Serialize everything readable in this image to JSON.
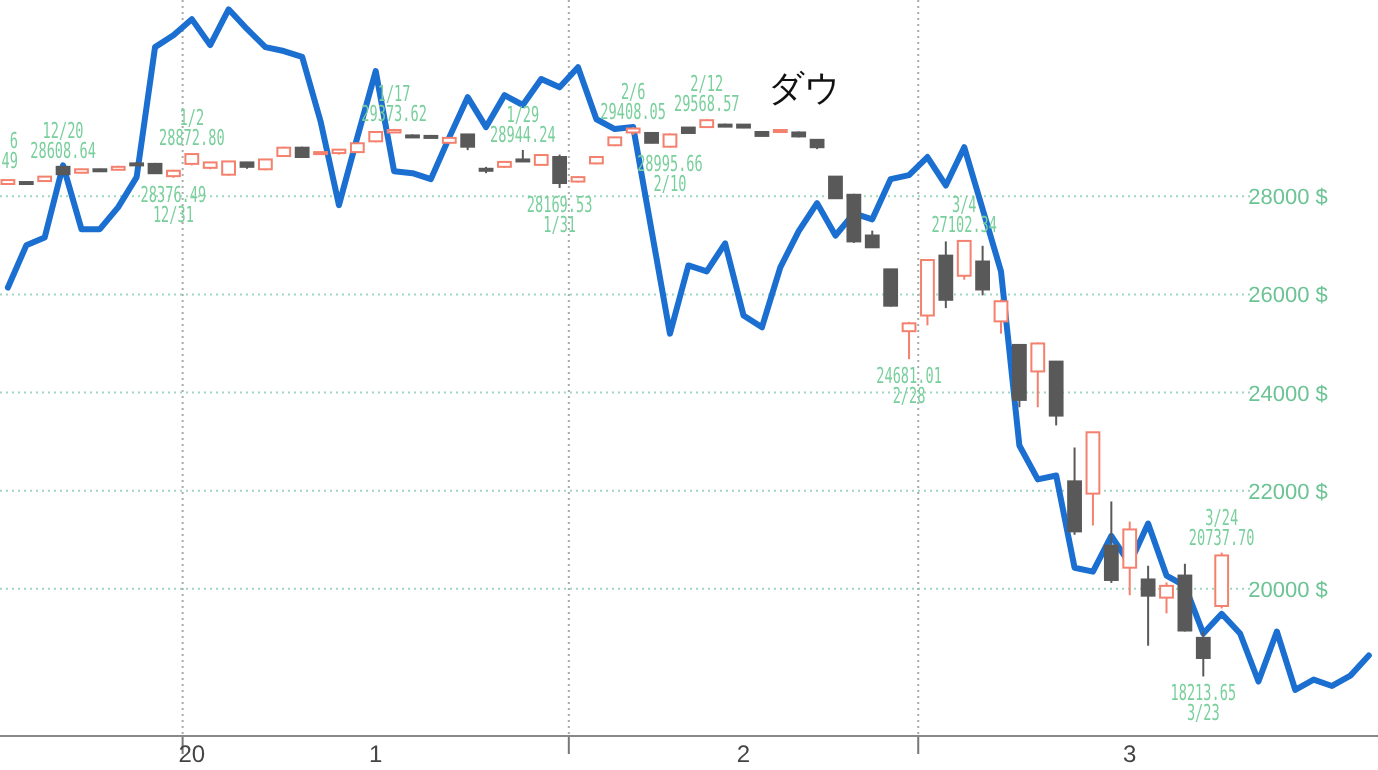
{
  "chart_data": {
    "type": "candlestick",
    "title": "ダウ",
    "categories": [
      null,
      null,
      null,
      null,
      null,
      null,
      null,
      null,
      null,
      null,
      "20",
      null,
      null,
      null,
      null,
      null,
      null,
      null,
      null,
      null,
      "1",
      null,
      null,
      null,
      null,
      null,
      null,
      null,
      null,
      null,
      null,
      null,
      null,
      null,
      null,
      null,
      null,
      null,
      null,
      null,
      "2",
      null,
      null,
      null,
      null,
      null,
      null,
      null,
      null,
      null,
      null,
      null,
      null,
      null,
      null,
      null,
      null,
      null,
      null,
      null,
      null,
      "3",
      null,
      null,
      null,
      null,
      null,
      null,
      null,
      null,
      null,
      null,
      null,
      null,
      null
    ],
    "ylim": [
      17000,
      32000
    ],
    "yticks": [
      {
        "value": 20000,
        "label": "20000 $"
      },
      {
        "value": 22000,
        "label": "22000 $"
      },
      {
        "value": 24000,
        "label": "24000 $"
      },
      {
        "value": 26000,
        "label": "26000 $"
      },
      {
        "value": 28000,
        "label": "28000 $"
      }
    ],
    "grid": "y",
    "series": [
      {
        "ohlc": [
          [
            28250,
            28340,
            28230,
            28330
          ],
          [
            28290,
            28300,
            28260,
            28280
          ],
          [
            28310,
            28410,
            28300,
            28400
          ],
          [
            28600,
            28608.64,
            28430,
            28450
          ],
          [
            28480,
            28560,
            28470,
            28550
          ],
          [
            28550,
            28560,
            28520,
            28540
          ],
          [
            28540,
            28620,
            28530,
            28600
          ],
          [
            28670,
            28700,
            28640,
            28660
          ],
          [
            28660,
            28680,
            28460,
            28470
          ],
          [
            28410,
            28540,
            28376.49,
            28520
          ],
          [
            28660,
            28872.8,
            28630,
            28860
          ],
          [
            28580,
            28700,
            28550,
            28690
          ],
          [
            28440,
            28720,
            28420,
            28710
          ],
          [
            28690,
            28700,
            28560,
            28600
          ],
          [
            28550,
            28760,
            28530,
            28750
          ],
          [
            28820,
            29010,
            28800,
            28990
          ],
          [
            28990,
            29010,
            28780,
            28800
          ],
          [
            28880,
            28910,
            28870,
            28900
          ],
          [
            28880,
            28960,
            28850,
            28950
          ],
          [
            28900,
            29090,
            28880,
            29080
          ],
          [
            29120,
            29320,
            29100,
            29310
          ],
          [
            29300,
            29373.62,
            29290,
            29350
          ],
          [
            29240,
            29260,
            29200,
            29230
          ],
          [
            29230,
            29250,
            29190,
            29220
          ],
          [
            29090,
            29200,
            29070,
            29190
          ],
          [
            29260,
            29270,
            28940,
            29010
          ],
          [
            28560,
            28600,
            28470,
            28550
          ],
          [
            28600,
            28720,
            28580,
            28700
          ],
          [
            28750,
            28944.24,
            28700,
            28740
          ],
          [
            28640,
            28860,
            28620,
            28840
          ],
          [
            28800,
            28850,
            28169.53,
            28270
          ],
          [
            28300,
            28410,
            28280,
            28390
          ],
          [
            28670,
            28810,
            28650,
            28800
          ],
          [
            29040,
            29210,
            29020,
            29200
          ],
          [
            29300,
            29408.05,
            29250,
            29380
          ],
          [
            29290,
            29300,
            29080,
            29090
          ],
          [
            29010,
            29280,
            28995.66,
            29260
          ],
          [
            29400,
            29410,
            29280,
            29290
          ],
          [
            29410,
            29568.57,
            29400,
            29550
          ],
          [
            29460,
            29480,
            29440,
            29450
          ],
          [
            29460,
            29470,
            29390,
            29400
          ],
          [
            29310,
            29330,
            29220,
            29230
          ],
          [
            29340,
            29370,
            29330,
            29350
          ],
          [
            29300,
            29320,
            29200,
            29220
          ],
          [
            29150,
            29160,
            28960,
            29000
          ],
          [
            28400,
            28410,
            27950,
            27960
          ],
          [
            28030,
            28050,
            27050,
            27080
          ],
          [
            27200,
            27300,
            26950,
            26960
          ],
          [
            26510,
            26520,
            25750,
            25770
          ],
          [
            25250,
            25440,
            24681.01,
            25410
          ],
          [
            25570,
            26720,
            25370,
            26700
          ],
          [
            26790,
            27080,
            25720,
            25890
          ],
          [
            26380,
            27102.34,
            26300,
            27090
          ],
          [
            26670,
            26990,
            25980,
            26100
          ],
          [
            25450,
            25900,
            25200,
            25860
          ],
          [
            24970,
            24990,
            23700,
            23850
          ],
          [
            24430,
            25020,
            23700,
            25000
          ],
          [
            24630,
            24640,
            23330,
            23530
          ],
          [
            22190,
            22880,
            21100,
            21170
          ],
          [
            21940,
            23200,
            21290,
            23190
          ],
          [
            20880,
            21780,
            20120,
            20180
          ],
          [
            20430,
            21370,
            19870,
            21210
          ],
          [
            20190,
            20470,
            18840,
            19860
          ],
          [
            19820,
            20130,
            19500,
            20060
          ],
          [
            20270,
            20510,
            19130,
            19150
          ],
          [
            19000,
            19130,
            18213.65,
            18590
          ],
          [
            19650,
            20737.7,
            19600,
            20680
          ],
          null,
          null,
          null,
          null,
          null,
          null,
          null,
          null
        ],
        "colors": [
          "#f4806e",
          "#595959",
          "#f4806e",
          "#595959",
          "#f4806e",
          "#595959",
          "#f4806e",
          "#595959",
          "#595959",
          "#f4806e",
          "#f4806e",
          "#f4806e",
          "#f4806e",
          "#595959",
          "#f4806e",
          "#f4806e",
          "#595959",
          "#f4806e",
          "#f4806e",
          "#f4806e",
          "#f4806e",
          "#f4806e",
          "#595959",
          "#595959",
          "#f4806e",
          "#595959",
          "#595959",
          "#f4806e",
          "#595959",
          "#f4806e",
          "#595959",
          "#f4806e",
          "#f4806e",
          "#f4806e",
          "#f4806e",
          "#595959",
          "#f4806e",
          "#595959",
          "#f4806e",
          "#595959",
          "#595959",
          "#595959",
          "#f4806e",
          "#595959",
          "#595959",
          "#595959",
          "#595959",
          "#595959",
          "#595959",
          "#f4806e",
          "#f4806e",
          "#595959",
          "#f4806e",
          "#595959",
          "#f4806e",
          "#595959",
          "#f4806e",
          "#595959",
          "#595959",
          "#f4806e",
          "#595959",
          "#f4806e",
          "#595959",
          "#f4806e",
          "#595959",
          "#595959",
          "#f4806e",
          null,
          null,
          null,
          null,
          null,
          null,
          null,
          null
        ]
      },
      {
        "type": "line",
        "color": "#1a6fd0",
        "values": [
          26140,
          27000,
          27160,
          28630,
          27330,
          27330,
          27780,
          28390,
          31040,
          31280,
          31610,
          31080,
          31810,
          31410,
          31040,
          30960,
          30840,
          29530,
          27820,
          29200,
          30550,
          28510,
          28470,
          28350,
          29200,
          30020,
          29410,
          30060,
          29860,
          30390,
          30220,
          30630,
          29570,
          29370,
          29410,
          27300,
          25200,
          26590,
          26470,
          27040,
          25570,
          25330,
          26550,
          27290,
          27860,
          27200,
          27650,
          27530,
          28350,
          28430,
          28800,
          28220,
          29000,
          27740,
          26470,
          22920,
          22230,
          22310,
          20430,
          20350,
          21080,
          20510,
          21330,
          20270,
          20060,
          19090,
          19490,
          19090,
          18110,
          19130,
          17940,
          18150,
          18020,
          18230,
          18640
        ]
      }
    ],
    "annotations": [
      ".49",
      "6",
      {
        "text": "12/20",
        "y": 28608.64
      },
      {
        "text": "28608.64",
        "y": 28608.64
      },
      {
        "text": "28376.49",
        "y": 28376.49
      },
      {
        "text": "12/31",
        "y": 28376.49
      },
      {
        "text": "1/2",
        "y": 28872.8
      },
      {
        "text": "28872.80",
        "y": 28872.8
      },
      {
        "text": "1/17",
        "y": 29373.62
      },
      {
        "text": "29373.62",
        "y": 29373.62
      },
      {
        "text": "1/29",
        "y": 28944.24
      },
      {
        "text": "28944.24",
        "y": 28944.24
      },
      {
        "text": "28169.53",
        "y": 28169.53
      },
      {
        "text": "1/31",
        "y": 28169.53
      },
      {
        "text": "2/6",
        "y": 29408.05
      },
      {
        "text": "29408.05",
        "y": 29408.05
      },
      {
        "text": "28995.66",
        "y": 28995.66
      },
      {
        "text": "2/10",
        "y": 28995.66
      },
      {
        "text": "2/12",
        "y": 29568.57
      },
      {
        "text": "29568.57",
        "y": 29568.57
      },
      {
        "text": "24681.01",
        "y": 24681.01
      },
      {
        "text": "2/28",
        "y": 24681.01
      },
      {
        "text": "3/4",
        "y": 27102.34
      },
      {
        "text": "27102.34",
        "y": 27102.34
      },
      {
        "text": "18213.65",
        "y": 18213.65
      },
      {
        "text": "3/23",
        "y": 18213.65
      },
      {
        "text": "3/24",
        "y": 20737.7
      },
      {
        "text": "20737.70",
        "y": 20737.7
      }
    ]
  }
}
